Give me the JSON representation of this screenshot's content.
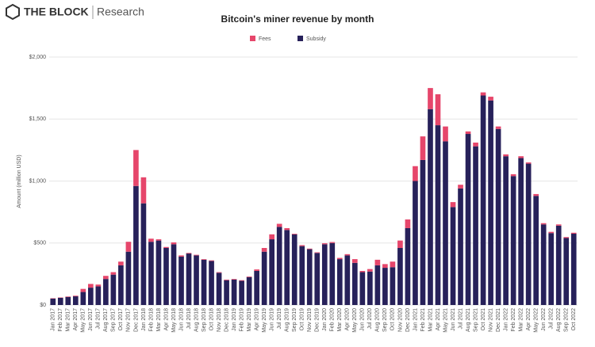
{
  "logo": {
    "brand": "THE BLOCK",
    "section": "Research"
  },
  "chart_data": {
    "type": "bar",
    "stacked": true,
    "title": "Bitcoin's miner revenue by month",
    "y_label": "Amount (million USD)",
    "categories": [
      "Jan 2017",
      "Feb 2017",
      "Mar 2017",
      "Apr 2017",
      "May 2017",
      "Jun 2017",
      "Jul 2017",
      "Aug 2017",
      "Sep 2017",
      "Oct 2017",
      "Nov 2017",
      "Dec 2017",
      "Jan 2018",
      "Feb 2018",
      "Mar 2018",
      "Apr 2018",
      "May 2018",
      "Jun 2018",
      "Jul 2018",
      "Aug 2018",
      "Sep 2018",
      "Oct 2018",
      "Nov 2018",
      "Dec 2018",
      "Jan 2019",
      "Feb 2019",
      "Mar 2019",
      "Apr 2019",
      "May 2019",
      "Jun 2019",
      "Jul 2019",
      "Aug 2019",
      "Sep 2019",
      "Oct 2019",
      "Nov 2019",
      "Dec 2019",
      "Jan 2020",
      "Feb 2020",
      "Mar 2020",
      "Apr 2020",
      "May 2020",
      "Jun 2020",
      "Jul 2020",
      "Aug 2020",
      "Sep 2020",
      "Oct 2020",
      "Nov 2020",
      "Dec 2020",
      "Jan 2021",
      "Feb 2021",
      "Mar 2021",
      "Apr 2021",
      "May 2021",
      "Jun 2021",
      "Jul 2021",
      "Aug 2021",
      "Sep 2021",
      "Oct 2021",
      "Nov 2021",
      "Dec 2021",
      "Jan 2022",
      "Feb 2022",
      "Mar 2022",
      "Apr 2022",
      "May 2022",
      "Jun 2022",
      "Jul 2022",
      "Aug 2022",
      "Sep 2022",
      "Oct 2022"
    ],
    "series": [
      {
        "name": "Fees",
        "color": "#e6466b",
        "values": [
          3,
          3,
          4,
          5,
          25,
          30,
          15,
          25,
          20,
          30,
          80,
          290,
          210,
          25,
          10,
          8,
          15,
          10,
          5,
          5,
          5,
          5,
          5,
          5,
          5,
          5,
          5,
          12,
          30,
          40,
          25,
          15,
          5,
          8,
          5,
          5,
          8,
          8,
          10,
          10,
          30,
          10,
          20,
          45,
          30,
          45,
          60,
          70,
          120,
          190,
          170,
          250,
          120,
          40,
          30,
          20,
          30,
          25,
          30,
          20,
          15,
          15,
          15,
          10,
          15,
          10,
          10,
          10,
          8,
          8
        ]
      },
      {
        "name": "Subsidy",
        "color": "#27215a",
        "values": [
          52,
          58,
          65,
          70,
          105,
          140,
          150,
          210,
          245,
          320,
          430,
          960,
          820,
          510,
          520,
          460,
          490,
          390,
          415,
          400,
          365,
          355,
          260,
          200,
          205,
          195,
          225,
          275,
          430,
          530,
          630,
          605,
          570,
          475,
          450,
          420,
          490,
          500,
          370,
          400,
          340,
          265,
          270,
          320,
          300,
          305,
          460,
          620,
          1000,
          1170,
          1580,
          1450,
          1320,
          790,
          940,
          1380,
          1280,
          1690,
          1650,
          1420,
          1200,
          1040,
          1185,
          1140,
          880,
          650,
          580,
          640,
          540,
          575
        ]
      }
    ],
    "ylim": [
      0,
      2000
    ],
    "yticks": [
      {
        "value": 0,
        "label": "$0"
      },
      {
        "value": 500,
        "label": "$500"
      },
      {
        "value": 1000,
        "label": "$1,000"
      },
      {
        "value": 1500,
        "label": "$1,500"
      },
      {
        "value": 2000,
        "label": "$2,000"
      }
    ],
    "grid": true,
    "legend": "top"
  }
}
